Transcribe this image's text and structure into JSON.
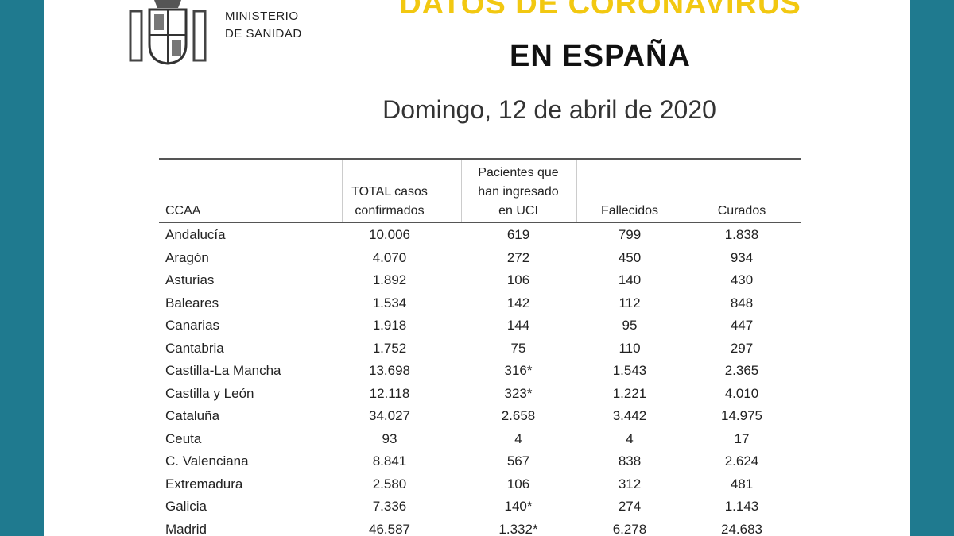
{
  "header": {
    "ministry": [
      "MINISTERIO",
      "DE SANIDAD"
    ],
    "title": "DATOS DE CORONAVIRUS",
    "title_line2": "EN ESPAÑA",
    "subtitle": "Domingo, 12 de abril de 2020"
  },
  "table": {
    "columns": [
      [
        "CCAA"
      ],
      [
        "TOTAL casos",
        "confirmados"
      ],
      [
        "Pacientes que",
        "han ingresado",
        "en UCI"
      ],
      [
        "Fallecidos"
      ],
      [
        "Curados"
      ]
    ],
    "rows": [
      [
        "Andalucía",
        "10.006",
        "619",
        "799",
        "1.838"
      ],
      [
        "Aragón",
        "4.070",
        "272",
        "450",
        "934"
      ],
      [
        "Asturias",
        "1.892",
        "106",
        "140",
        "430"
      ],
      [
        "Baleares",
        "1.534",
        "142",
        "112",
        "848"
      ],
      [
        "Canarias",
        "1.918",
        "144",
        "95",
        "447"
      ],
      [
        "Cantabria",
        "1.752",
        "75",
        "110",
        "297"
      ],
      [
        "Castilla-La Mancha",
        "13.698",
        "316*",
        "1.543",
        "2.365"
      ],
      [
        "Castilla y León",
        "12.118",
        "323*",
        "1.221",
        "4.010"
      ],
      [
        "Cataluña",
        "34.027",
        "2.658",
        "3.442",
        "14.975"
      ],
      [
        "Ceuta",
        "93",
        "4",
        "4",
        "17"
      ],
      [
        "C. Valenciana",
        "8.841",
        "567",
        "838",
        "2.624"
      ],
      [
        "Extremadura",
        "2.580",
        "106",
        "312",
        "481"
      ],
      [
        "Galicia",
        "7.336",
        "140*",
        "274",
        "1.143"
      ],
      [
        "Madrid",
        "46.587",
        "1.332*",
        "6.278",
        "24.683"
      ]
    ]
  }
}
